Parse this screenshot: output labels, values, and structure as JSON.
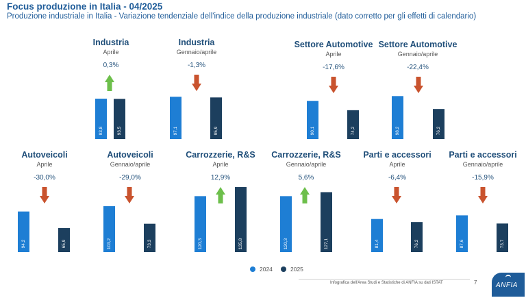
{
  "header": {
    "title": "Focus produzione in Italia - 04/2025",
    "subtitle": "Produzione industriale in Italia - Variazione tendenziale dell'indice della produzione industriale (dato corretto per gli effetti di calendario)"
  },
  "legend": {
    "label_2024": "2024",
    "label_2025": "2025"
  },
  "footer": {
    "source": "Infografica dell'Area Studi e Statistiche di ANFIA su dati ISTAT",
    "page": "7"
  },
  "logo": {
    "text": "ANFIA"
  },
  "colors": {
    "bar_2024": "#1e7ed4",
    "bar_2025": "#1c3f5e",
    "up": "#6dbf4b",
    "down": "#c9532e",
    "title": "#1f5c99",
    "panel_title": "#1f4e79"
  },
  "chart_data": [
    {
      "type": "bar",
      "title": "Industria",
      "period": "Aprile",
      "change": "0.3%",
      "direction": "up",
      "series": [
        {
          "name": "2024",
          "value": 93.8,
          "label": "93,8"
        },
        {
          "name": "2025",
          "value": 93.5,
          "label": "93,5"
        }
      ]
    },
    {
      "type": "bar",
      "title": "Industria",
      "period": "Gennaio/aprile",
      "change": "-1.3%",
      "direction": "down",
      "series": [
        {
          "name": "2024",
          "value": 97.1,
          "label": "97,1"
        },
        {
          "name": "2025",
          "value": 95.9,
          "label": "95,9"
        }
      ]
    },
    {
      "type": "bar",
      "title": "Settore Automotive",
      "period": "Aprile",
      "change": "-17.6%",
      "direction": "down",
      "series": [
        {
          "name": "2024",
          "value": 90.1,
          "label": "90,1"
        },
        {
          "name": "2025",
          "value": 74.2,
          "label": "74,2"
        }
      ]
    },
    {
      "type": "bar",
      "title": "Settore Automotive",
      "period": "Gennaio/aprile",
      "change": "-22.4%",
      "direction": "down",
      "series": [
        {
          "name": "2024",
          "value": 98.2,
          "label": "98,2"
        },
        {
          "name": "2025",
          "value": 76.2,
          "label": "76,2"
        }
      ]
    },
    {
      "type": "bar",
      "title": "Autoveicoli",
      "period": "Aprile",
      "change": "-30.0%",
      "direction": "down",
      "series": [
        {
          "name": "2024",
          "value": 94.2,
          "label": "94,2"
        },
        {
          "name": "2025",
          "value": 65.9,
          "label": "65,9"
        }
      ]
    },
    {
      "type": "bar",
      "title": "Autoveicoli",
      "period": "Gennaio/aprile",
      "change": "-29.0%",
      "direction": "down",
      "series": [
        {
          "name": "2024",
          "value": 103.2,
          "label": "103,2"
        },
        {
          "name": "2025",
          "value": 73.3,
          "label": "73,3"
        }
      ]
    },
    {
      "type": "bar",
      "title": "Carrozzerie, R&S",
      "period": "Aprile",
      "change": "12.9%",
      "direction": "up",
      "series": [
        {
          "name": "2024",
          "value": 120.3,
          "label": "120,3"
        },
        {
          "name": "2025",
          "value": 135.8,
          "label": "135,8"
        }
      ]
    },
    {
      "type": "bar",
      "title": "Carrozzerie, R&S",
      "period": "Gennaio/aprile",
      "change": "5.6%",
      "direction": "up",
      "series": [
        {
          "name": "2024",
          "value": 120.3,
          "label": "120,3"
        },
        {
          "name": "2025",
          "value": 127.1,
          "label": "127,1"
        }
      ]
    },
    {
      "type": "bar",
      "title": "Parti e accessori",
      "period": "Aprile",
      "change": "-6.4%",
      "direction": "down",
      "series": [
        {
          "name": "2024",
          "value": 81.4,
          "label": "81,4"
        },
        {
          "name": "2025",
          "value": 76.2,
          "label": "76,2"
        }
      ]
    },
    {
      "type": "bar",
      "title": "Parti e accessori",
      "period": "Gennaio/aprile",
      "change": "-15.9%",
      "direction": "down",
      "series": [
        {
          "name": "2024",
          "value": 87.6,
          "label": "87,6"
        },
        {
          "name": "2025",
          "value": 73.7,
          "label": "73,7"
        }
      ]
    }
  ]
}
